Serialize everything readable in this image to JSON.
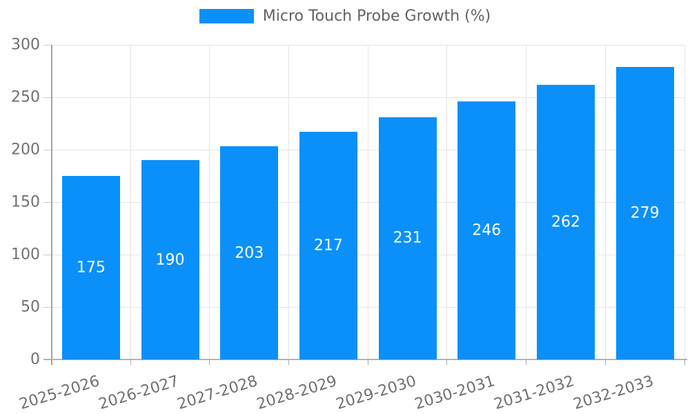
{
  "chart_data": {
    "type": "bar",
    "legend": "Micro Touch Probe Growth (%)",
    "categories": [
      "2025-2026",
      "2026-2027",
      "2027-2028",
      "2028-2029",
      "2029-2030",
      "2030-2031",
      "2031-2032",
      "2032-2033"
    ],
    "values": [
      175,
      190,
      203,
      217,
      231,
      246,
      262,
      279
    ],
    "title": "",
    "xlabel": "",
    "ylabel": "",
    "ylim": [
      0,
      300
    ],
    "yticks": [
      0,
      50,
      100,
      150,
      200,
      250,
      300
    ],
    "grid": true,
    "legend_position": "top-center",
    "colors": {
      "bar": "#0a90f8",
      "value_label": "#ffffff",
      "axis_label": "#707070",
      "legend_text": "#5f6368",
      "axis_line": "#a3a3a3",
      "gridline": "#e4e4e4"
    }
  }
}
